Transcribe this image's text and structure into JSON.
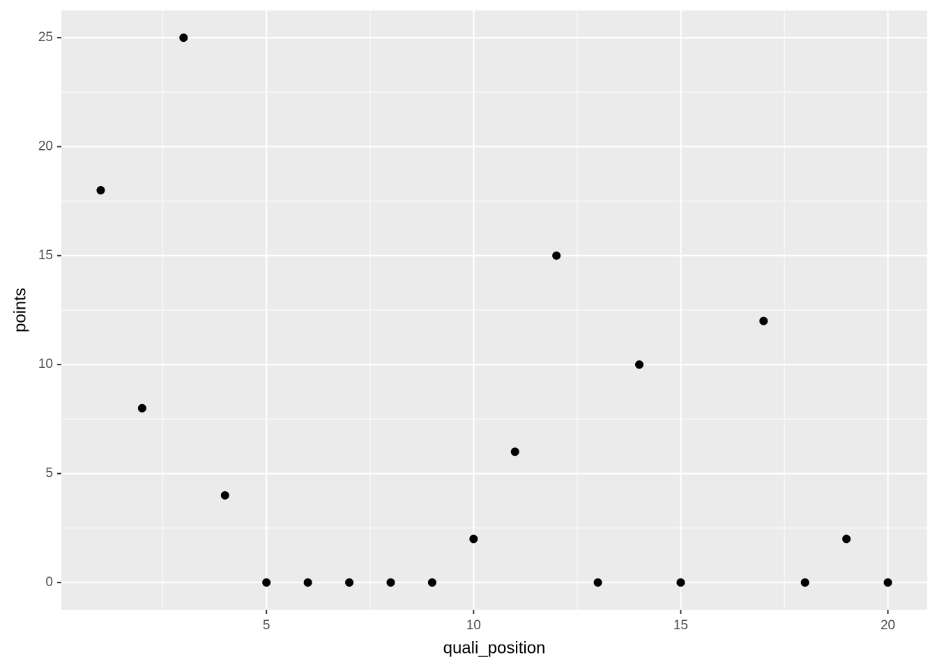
{
  "chart_data": {
    "type": "scatter",
    "x_label": "quali_position",
    "y_label": "points",
    "x": [
      1,
      2,
      3,
      4,
      5,
      6,
      7,
      8,
      9,
      10,
      11,
      12,
      13,
      14,
      15,
      17,
      18,
      19,
      20
    ],
    "values": [
      18,
      8,
      25,
      4,
      0,
      0,
      0,
      0,
      0,
      2,
      6,
      15,
      0,
      10,
      0,
      12,
      0,
      2,
      0
    ],
    "color": "#000000",
    "xlim": [
      0.05,
      20.95
    ],
    "xticks": [
      5,
      10,
      15,
      20
    ],
    "ylim": [
      -1.25,
      26.25
    ],
    "yticks": [
      0,
      5,
      10,
      15,
      20,
      25
    ],
    "grid": true
  }
}
